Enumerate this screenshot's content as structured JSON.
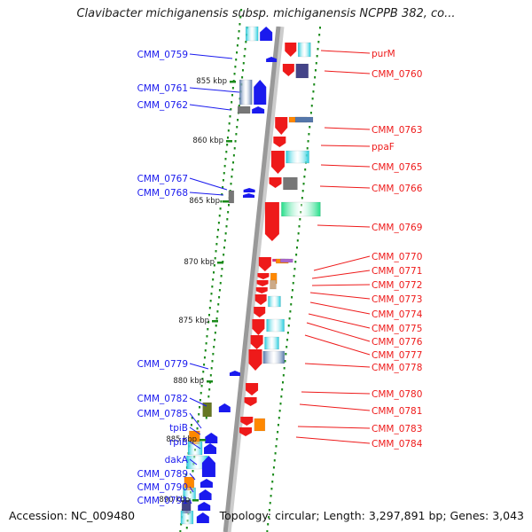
{
  "title": "Clavibacter michiganensis subsp. michiganensis NCPPB 382, co...",
  "footer": {
    "accession": "Accession: NC_009480",
    "summary": "Topology: circular; Length: 3,297,891 bp; Genes: 3,043"
  },
  "colors": {
    "forward_strand": "#1a1aee",
    "reverse_strand": "#ee1a1a",
    "backbone": "#999999",
    "tick": "#1a8a1a",
    "cyan": "#22ccdd",
    "orange": "#ff8800",
    "steel": "#5577aa",
    "navy": "#444488",
    "gray": "#777777",
    "green": "#22dd88",
    "olive": "#667722"
  },
  "kbp_markers": [
    "855 kbp",
    "860 kbp",
    "865 kbp",
    "870 kbp",
    "875 kbp",
    "880 kbp",
    "885 kbp",
    "890 kbp"
  ],
  "genes_left": [
    "CMM_0759",
    "CMM_0761",
    "CMM_0762",
    "CMM_0767",
    "CMM_0768",
    "CMM_0779",
    "CMM_0782",
    "CMM_0785",
    "tpiB",
    "rpiB",
    "dakA",
    "CMM_0789",
    "CMM_0790",
    "CMM_0791"
  ],
  "genes_right": [
    "purM",
    "CMM_0760",
    "CMM_0763",
    "ppaF",
    "CMM_0765",
    "CMM_0766",
    "CMM_0769",
    "CMM_0770",
    "CMM_0771",
    "CMM_0772",
    "CMM_0773",
    "CMM_0774",
    "CMM_0775",
    "CMM_0776",
    "CMM_0777",
    "CMM_0778",
    "CMM_0780",
    "CMM_0781",
    "CMM_0783",
    "CMM_0784"
  ]
}
